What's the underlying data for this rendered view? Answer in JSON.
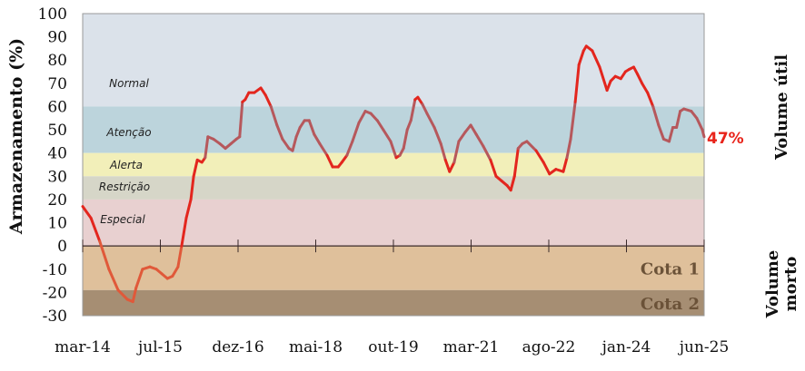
{
  "chart_data": {
    "type": "line",
    "title": "",
    "ylabel": "Armazenamento (%)",
    "xlabel": "",
    "ylim": [
      -30,
      100
    ],
    "yticks": [
      100,
      90,
      80,
      70,
      60,
      50,
      40,
      30,
      20,
      10,
      0,
      -10,
      -20,
      -30
    ],
    "xlim_months_since_mar14": [
      0,
      135
    ],
    "xtick_labels": [
      "mar-14",
      "jul-15",
      "dez-16",
      "mai-18",
      "out-19",
      "mar-21",
      "ago-22",
      "jan-24",
      "jun-25"
    ],
    "bands": [
      {
        "name": "Normal",
        "from": 60,
        "to": 100,
        "color": "#dbe2ea"
      },
      {
        "name": "Atenção",
        "from": 40,
        "to": 60,
        "color": "#bcd4dc"
      },
      {
        "name": "Alerta",
        "from": 30,
        "to": 40,
        "color": "#f2efb9"
      },
      {
        "name": "Restrição",
        "from": 20,
        "to": 30,
        "color": "#d6d6c8"
      },
      {
        "name": "Especial",
        "from": 0,
        "to": 20,
        "color": "#e8d0d0"
      },
      {
        "name": "Cota 1",
        "from": -19,
        "to": 0,
        "color": "#dfc09b"
      },
      {
        "name": "Cota 2",
        "from": -30,
        "to": -19,
        "color": "#a68e73"
      }
    ],
    "side_labels": {
      "upper": "Volume útil",
      "lower_line1": "Volume",
      "lower_line2": "morto"
    },
    "last_value_label": "47%",
    "series": [
      {
        "name": "Armazenamento",
        "x": [
          0,
          1.8,
          3.7,
          5.7,
          7.7,
          9.7,
          10.9,
          11.6,
          13,
          14.6,
          16,
          17.2,
          18.4,
          19.5,
          20.7,
          21.5,
          22.5,
          23.5,
          24.1,
          24.9,
          25.9,
          26.6,
          27.2,
          28.4,
          29.8,
          31,
          32.2,
          33.4,
          34.1,
          34.7,
          35.3,
          36.1,
          37.3,
          38.7,
          39.7,
          40.9,
          42.2,
          43.4,
          44.8,
          45.6,
          46.4,
          47.2,
          48.2,
          49.2,
          50.3,
          51.5,
          53.1,
          54.3,
          55.5,
          56.3,
          57.4,
          58.6,
          60,
          61.4,
          62.6,
          64,
          65.3,
          66.9,
          68.1,
          68.9,
          69.7,
          70.5,
          71.3,
          72.2,
          72.8,
          73.8,
          74.8,
          76.4,
          77.8,
          78.8,
          79.7,
          80.7,
          81.7,
          83.1,
          84.3,
          85.5,
          87,
          88.6,
          89.8,
          91,
          92.2,
          93,
          93.8,
          94.6,
          95.5,
          96.5,
          98.5,
          100.1,
          101.4,
          102.8,
          104.4,
          105.2,
          106,
          107,
          107.8,
          108.8,
          109.4,
          110.7,
          112.3,
          113.9,
          114.7,
          115.7,
          116.9,
          117.9,
          118.7,
          119.7,
          120.5,
          121.5,
          122.7,
          123.9,
          125.1,
          126.2,
          127.4,
          128.2,
          129,
          129.8,
          130.6,
          132.2,
          133.4,
          134.6,
          135
        ],
        "y": [
          17,
          12,
          2,
          -10,
          -19,
          -23,
          -24,
          -18,
          -10,
          -9,
          -10,
          -12,
          -14,
          -13,
          -9,
          0,
          12,
          20,
          30,
          37,
          36,
          38,
          47,
          46,
          44,
          42,
          44,
          46,
          47,
          62,
          63,
          66,
          66,
          68,
          65,
          60,
          52,
          46,
          42,
          41,
          47,
          51,
          54,
          54,
          48,
          44,
          39,
          34,
          34,
          36,
          39,
          45,
          53,
          58,
          57,
          54,
          50,
          45,
          38,
          39,
          42,
          50,
          54,
          63,
          64,
          61,
          57,
          51,
          44,
          37,
          32,
          36,
          45,
          49,
          52,
          48,
          43,
          37,
          30,
          28,
          26,
          24,
          30,
          42,
          44,
          45,
          41,
          36,
          31,
          33,
          32,
          38,
          46,
          62,
          78,
          84,
          86,
          84,
          77,
          67,
          71,
          73,
          72,
          75,
          76,
          77,
          74,
          70,
          66,
          60,
          52,
          46,
          45,
          51,
          51,
          58,
          59,
          58,
          55,
          50,
          47
        ]
      }
    ]
  }
}
